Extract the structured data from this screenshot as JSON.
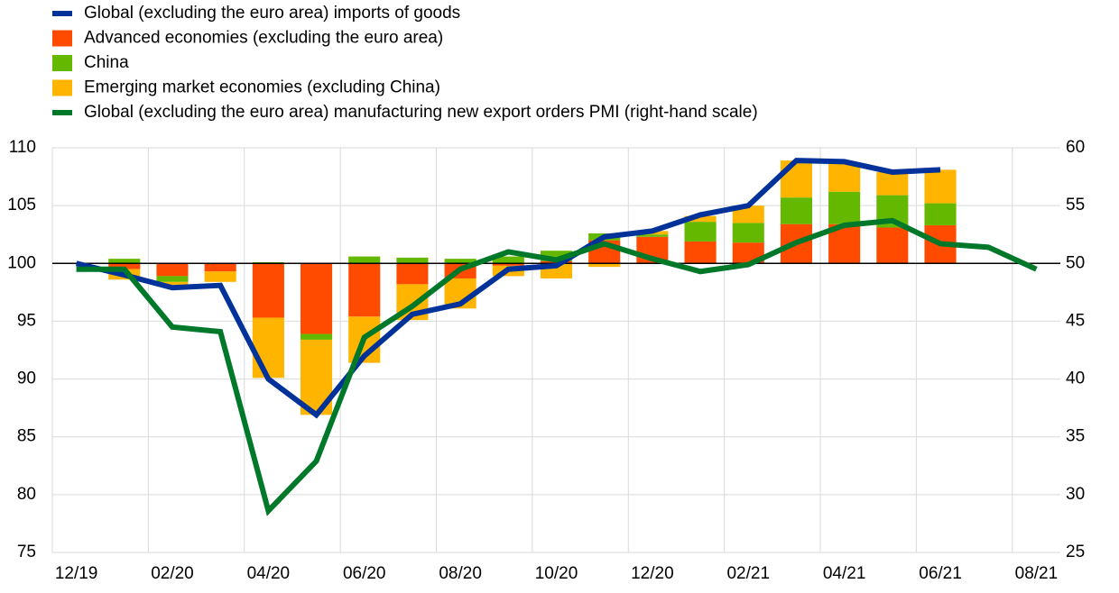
{
  "chart_data": {
    "type": "bar",
    "categories": [
      "12/19",
      null,
      "02/20",
      null,
      "04/20",
      null,
      "06/20",
      null,
      "08/20",
      null,
      "10/20",
      null,
      "12/20",
      null,
      "02/21",
      null,
      "04/21",
      null,
      "06/21",
      null,
      "08/21"
    ],
    "baseline": 100,
    "ylim": [
      75,
      110
    ],
    "yticks": [
      75,
      80,
      85,
      90,
      95,
      100,
      105,
      110
    ],
    "y2lim": [
      25,
      60
    ],
    "y2ticks": [
      25,
      30,
      35,
      40,
      45,
      50,
      55,
      60
    ],
    "grid": true,
    "series": [
      {
        "name": "Global (excluding the euro area) imports of goods",
        "type": "line",
        "color": "#003299",
        "values": [
          100,
          99.0,
          97.9,
          98.1,
          90.0,
          86.9,
          92.0,
          95.6,
          96.5,
          99.5,
          99.8,
          102.3,
          102.8,
          104.2,
          105.0,
          108.9,
          108.8,
          107.9,
          108.1,
          null,
          null
        ]
      },
      {
        "name": "Advanced economies (excluding the euro area)",
        "type": "bar",
        "color": "#ff4b00",
        "values": [
          null,
          -0.5,
          -1.1,
          -0.7,
          -4.7,
          -6.1,
          -4.6,
          -1.8,
          -1.3,
          -0.2,
          0.2,
          2.0,
          2.3,
          1.9,
          1.8,
          3.4,
          3.4,
          3.1,
          3.3,
          null,
          null
        ]
      },
      {
        "name": "China",
        "type": "bar",
        "color": "#65b800",
        "values": [
          null,
          0.4,
          -0.5,
          0,
          0.1,
          -0.5,
          0.6,
          0.5,
          0.4,
          0.6,
          0.9,
          0.6,
          0.2,
          1.7,
          1.7,
          2.3,
          2.8,
          2.8,
          1.9,
          null,
          null
        ]
      },
      {
        "name": "Emerging market economies (excluding China)",
        "type": "bar",
        "color": "#ffb400",
        "values": [
          null,
          -0.9,
          -0.4,
          -0.9,
          -5.2,
          -6.5,
          -4.0,
          -3.1,
          -2.6,
          -0.9,
          -1.3,
          -0.3,
          0.3,
          0.5,
          1.5,
          3.2,
          2.5,
          2.0,
          2.9,
          null,
          null
        ]
      },
      {
        "name": "Global (excluding the euro area) manufacturing new export orders PMI (right-hand scale)",
        "type": "line",
        "axis": "y2",
        "color": "#00782a",
        "values": [
          49.5,
          49.5,
          44.5,
          44.1,
          28.6,
          32.9,
          43.6,
          46.3,
          49.5,
          51.0,
          50.3,
          51.7,
          50.4,
          49.3,
          49.9,
          51.8,
          53.3,
          53.7,
          51.7,
          51.4,
          49.5
        ]
      }
    ]
  }
}
